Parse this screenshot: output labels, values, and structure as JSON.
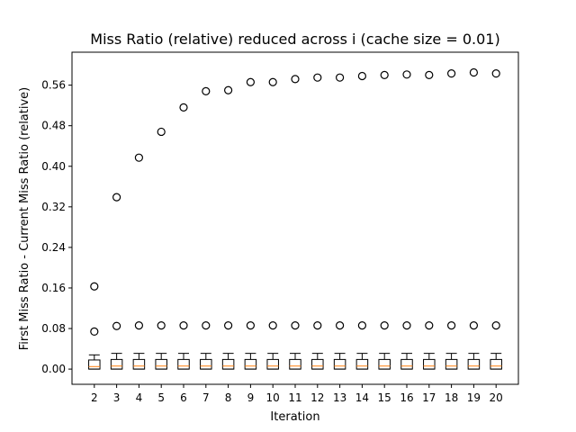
{
  "chart_data": {
    "type": "box",
    "title": "Miss Ratio (relative) reduced across i (cache size = 0.01)",
    "xlabel": "Iteration",
    "ylabel": "First Miss Ratio - Current Miss Ratio (relative)",
    "categories": [
      "2",
      "3",
      "4",
      "5",
      "6",
      "7",
      "8",
      "9",
      "10",
      "11",
      "12",
      "13",
      "14",
      "15",
      "16",
      "17",
      "18",
      "19",
      "20"
    ],
    "ylim": [
      -0.03,
      0.625
    ],
    "yticks": [
      "0.00",
      "0.08",
      "0.16",
      "0.24",
      "0.32",
      "0.40",
      "0.48",
      "0.56"
    ],
    "boxes": {
      "whisker_low": [
        0.0,
        0.0,
        0.0,
        0.0,
        0.0,
        0.0,
        0.0,
        0.0,
        0.0,
        0.0,
        0.0,
        0.0,
        0.0,
        0.0,
        0.0,
        0.0,
        0.0,
        0.0,
        0.0
      ],
      "q1": [
        0.0,
        0.0,
        0.0,
        0.0,
        0.0,
        0.0,
        0.0,
        0.0,
        0.0,
        0.0,
        0.0,
        0.0,
        0.0,
        0.0,
        0.0,
        0.0,
        0.0,
        0.0,
        0.0
      ],
      "median": [
        0.005,
        0.006,
        0.006,
        0.006,
        0.006,
        0.006,
        0.006,
        0.006,
        0.006,
        0.006,
        0.006,
        0.006,
        0.006,
        0.006,
        0.006,
        0.006,
        0.006,
        0.006,
        0.006
      ],
      "q3": [
        0.018,
        0.019,
        0.019,
        0.019,
        0.019,
        0.019,
        0.019,
        0.019,
        0.019,
        0.019,
        0.019,
        0.019,
        0.019,
        0.019,
        0.019,
        0.019,
        0.019,
        0.019,
        0.019
      ],
      "whisker_high": [
        0.028,
        0.031,
        0.031,
        0.031,
        0.031,
        0.031,
        0.031,
        0.031,
        0.031,
        0.031,
        0.031,
        0.031,
        0.031,
        0.031,
        0.031,
        0.031,
        0.031,
        0.031,
        0.031
      ]
    },
    "outliers": [
      [
        0.074,
        0.163
      ],
      [
        0.085,
        0.339
      ],
      [
        0.086,
        0.417
      ],
      [
        0.086,
        0.468
      ],
      [
        0.086,
        0.516
      ],
      [
        0.086,
        0.548
      ],
      [
        0.086,
        0.55
      ],
      [
        0.086,
        0.566
      ],
      [
        0.086,
        0.566
      ],
      [
        0.086,
        0.572
      ],
      [
        0.086,
        0.575
      ],
      [
        0.086,
        0.575
      ],
      [
        0.086,
        0.578
      ],
      [
        0.086,
        0.58
      ],
      [
        0.086,
        0.581
      ],
      [
        0.086,
        0.58
      ],
      [
        0.086,
        0.583
      ],
      [
        0.086,
        0.585
      ],
      [
        0.086,
        0.583
      ]
    ],
    "colors": {
      "box": "#000000",
      "median": "#ff7f0e",
      "outlier": "#000000"
    },
    "grid": false,
    "legend": "none"
  }
}
